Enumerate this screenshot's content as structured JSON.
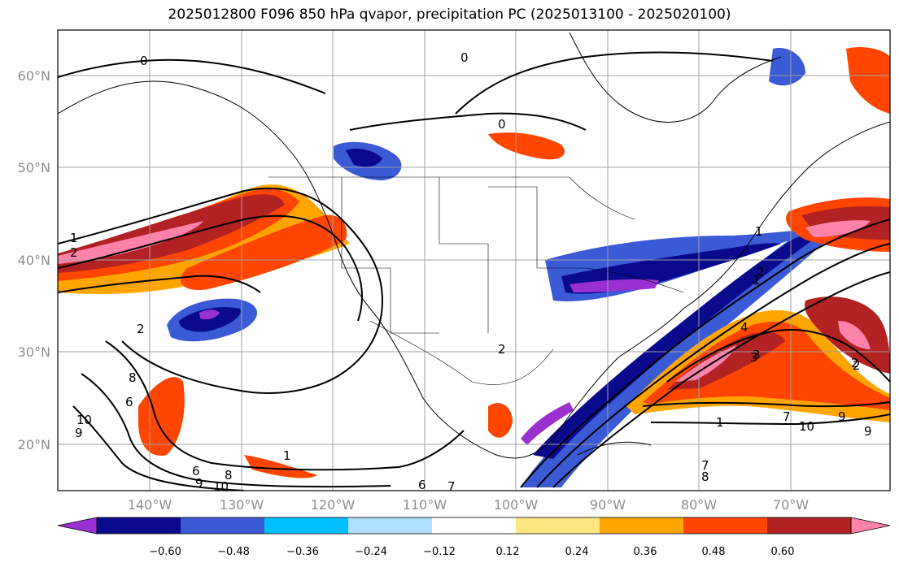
{
  "title": "2025012800 F096 850 hPa qvapor, precipitation PC (2025013100 - 2025020100)",
  "map": {
    "projection": "lat-lon",
    "lon_range_deg": [
      -150,
      -57
    ],
    "lat_range_deg": [
      15,
      65
    ],
    "gridlines": true,
    "lat_labels": [
      "20°N",
      "30°N",
      "40°N",
      "50°N",
      "60°N"
    ],
    "lat_values": [
      20,
      30,
      40,
      50,
      60
    ],
    "lon_labels": [
      "140°W",
      "130°W",
      "120°W",
      "110°W",
      "100°W",
      "90°W",
      "80°W",
      "70°W"
    ],
    "lon_values": [
      -140,
      -130,
      -120,
      -110,
      -100,
      -90,
      -80,
      -70
    ],
    "contour_labels": [
      "0",
      "0",
      "0",
      "1",
      "2",
      "1",
      "2",
      "2",
      "1",
      "2",
      "3",
      "2",
      "1",
      "8",
      "6",
      "9",
      "10",
      "8",
      "6",
      "9",
      "10",
      "7",
      "6",
      "7",
      "1",
      "10",
      "9",
      "9",
      "8",
      "7",
      "4",
      "3",
      "2"
    ]
  },
  "colorbar": {
    "ticks": [
      "−0.60",
      "−0.48",
      "−0.36",
      "−0.24",
      "−0.12",
      "0.12",
      "0.24",
      "0.36",
      "0.48",
      "0.60"
    ],
    "colors": [
      "#9b30d0",
      "#0a0a8c",
      "#3a5ad6",
      "#00bfff",
      "#b0e0ff",
      "#ffffff",
      "#ffe680",
      "#ffa500",
      "#ff4500",
      "#b22222",
      "#ff82ab"
    ],
    "extend": "both"
  },
  "fill_colors": {
    "n060": "#9b30d0",
    "n048": "#0a0a8c",
    "n036": "#3a5ad6",
    "n024": "#00bfff",
    "n012": "#b0e0ff",
    "p012": "#ffe680",
    "p024": "#ffa500",
    "p036": "#ff4500",
    "p048": "#b22222",
    "p060": "#ff82ab"
  }
}
